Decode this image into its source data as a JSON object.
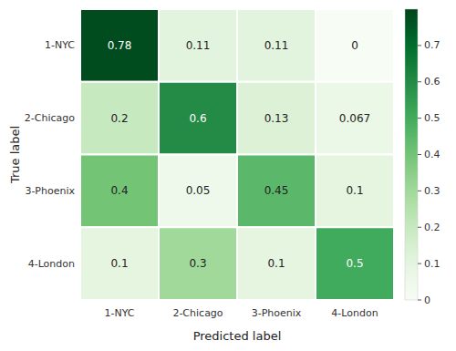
{
  "chart_data": {
    "type": "heatmap",
    "categories": [
      "1-NYC",
      "2-Chicago",
      "3-Phoenix",
      "4-London"
    ],
    "values": [
      [
        0.78,
        0.11,
        0.11,
        0
      ],
      [
        0.2,
        0.6,
        0.13,
        0.067
      ],
      [
        0.4,
        0.05,
        0.45,
        0.1
      ],
      [
        0.1,
        0.3,
        0.1,
        0.5
      ]
    ],
    "xlabel": "Predicted label",
    "ylabel": "True label",
    "color": "Greens",
    "colorbar_range": [
      0.0,
      0.8
    ],
    "colorbar_ticks": [
      0.0,
      0.1,
      0.2,
      0.3,
      0.4,
      0.5,
      0.6,
      0.7
    ],
    "data_labels": true
  }
}
